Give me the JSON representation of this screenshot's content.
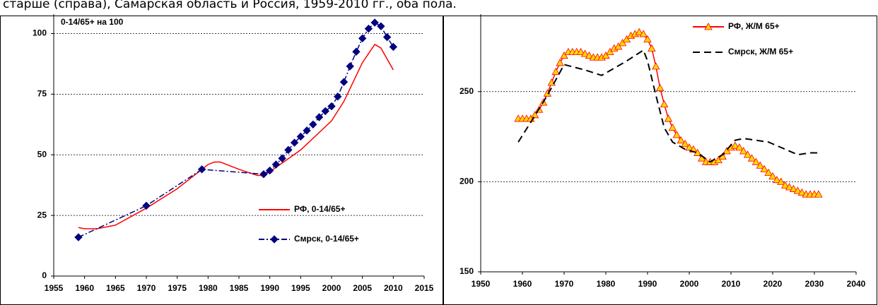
{
  "caption": "старше (справа), Самарская область и Россия, 1959-2010 гг., оба пола.",
  "chart_data": [
    {
      "type": "line",
      "title": "0-14/65+ на 100",
      "xlim": [
        1955,
        2015
      ],
      "xticks": [
        1955,
        1960,
        1965,
        1970,
        1975,
        1980,
        1985,
        1990,
        1995,
        2000,
        2005,
        2010,
        2015
      ],
      "ylim": [
        0,
        108
      ],
      "yticks": [
        0,
        25,
        50,
        75,
        100
      ],
      "grid": true,
      "legend": "lower-right",
      "series": [
        {
          "name": "РФ, 0-14/65+",
          "color": "#ff0000",
          "line_style": "solid",
          "marker": null,
          "x": [
            1959,
            1960,
            1962,
            1965,
            1970,
            1975,
            1979,
            1980,
            1981,
            1982,
            1985,
            1988,
            1989,
            1990,
            1995,
            2000,
            2002,
            2005,
            2007,
            2008,
            2010
          ],
          "values": [
            20,
            19.5,
            19.5,
            21,
            28,
            36,
            44,
            46,
            47,
            47,
            44,
            41.5,
            41.5,
            43,
            52,
            64,
            72,
            88,
            95.5,
            94,
            85
          ]
        },
        {
          "name": "Смрск, 0-14/65+",
          "color": "#000080",
          "line_style": "dashdot",
          "marker": "diamond",
          "x": [
            1959,
            1970,
            1979,
            1989,
            1990,
            1991,
            1992,
            1993,
            1994,
            1995,
            1996,
            1997,
            1998,
            1999,
            2000,
            2001,
            2002,
            2003,
            2004,
            2005,
            2006,
            2007,
            2008,
            2009,
            2010
          ],
          "values": [
            16,
            29,
            44,
            42,
            43.5,
            46,
            48.5,
            52,
            55,
            57.5,
            60,
            62.5,
            65.5,
            68,
            70,
            74,
            80,
            86.5,
            92.5,
            98,
            102,
            104.5,
            103,
            98.5,
            94.5
          ]
        }
      ]
    },
    {
      "type": "line",
      "xlim": [
        1950,
        2040
      ],
      "xticks": [
        1950,
        1960,
        1970,
        1980,
        1990,
        2000,
        2010,
        2020,
        2030,
        2040
      ],
      "ylim": [
        150,
        293
      ],
      "yticks": [
        150,
        200,
        250
      ],
      "grid": true,
      "legend": "upper-right",
      "series": [
        {
          "name": "РФ, Ж/М 65+",
          "color": "#ff0000",
          "line_style": "solid",
          "marker": "triangle",
          "marker_fill": "#ffd700",
          "x": [
            1959,
            1960,
            1961,
            1962,
            1963,
            1964,
            1965,
            1966,
            1967,
            1968,
            1969,
            1970,
            1971,
            1972,
            1973,
            1974,
            1975,
            1976,
            1977,
            1978,
            1979,
            1980,
            1981,
            1982,
            1983,
            1984,
            1985,
            1986,
            1987,
            1988,
            1989,
            1990,
            1991,
            1992,
            1993,
            1994,
            1995,
            1996,
            1997,
            1998,
            1999,
            2000,
            2001,
            2002,
            2003,
            2004,
            2005,
            2006,
            2007,
            2008,
            2009,
            2010,
            2011,
            2012,
            2013,
            2014,
            2015,
            2016,
            2017,
            2018,
            2019,
            2020,
            2021,
            2022,
            2023,
            2024,
            2025,
            2026,
            2027,
            2028,
            2029,
            2030,
            2031
          ],
          "values": [
            235,
            235,
            235,
            235,
            237,
            240,
            244,
            249,
            255,
            261,
            266,
            270,
            272,
            272,
            272,
            272,
            271,
            270,
            269,
            269,
            269,
            270,
            272,
            274,
            275,
            277,
            279,
            281,
            282,
            283,
            282,
            279,
            274,
            264,
            252,
            243,
            235,
            230,
            226,
            223,
            221,
            219,
            218,
            216,
            213,
            211,
            211,
            211,
            212,
            214,
            217,
            219,
            220,
            219,
            217,
            215,
            213,
            211,
            209,
            207,
            205,
            203,
            201,
            200,
            198,
            197,
            196,
            195,
            194,
            193,
            193,
            193,
            193
          ]
        },
        {
          "name": "Смрск, Ж/М 65+",
          "color": "#000000",
          "line_style": "dashed",
          "marker": null,
          "x": [
            1959,
            1962,
            1966,
            1970,
            1975,
            1979,
            1985,
            1989,
            1990,
            1992,
            1994,
            1996,
            1999,
            2002,
            2005,
            2008,
            2011,
            2013,
            2016,
            2019,
            2022,
            2026,
            2029,
            2031
          ],
          "values": [
            222,
            233,
            248,
            265,
            262,
            259,
            267,
            273,
            267,
            248,
            230,
            222,
            218,
            216,
            211,
            215,
            223,
            224,
            223,
            222,
            219,
            215,
            216,
            216
          ]
        }
      ]
    }
  ]
}
